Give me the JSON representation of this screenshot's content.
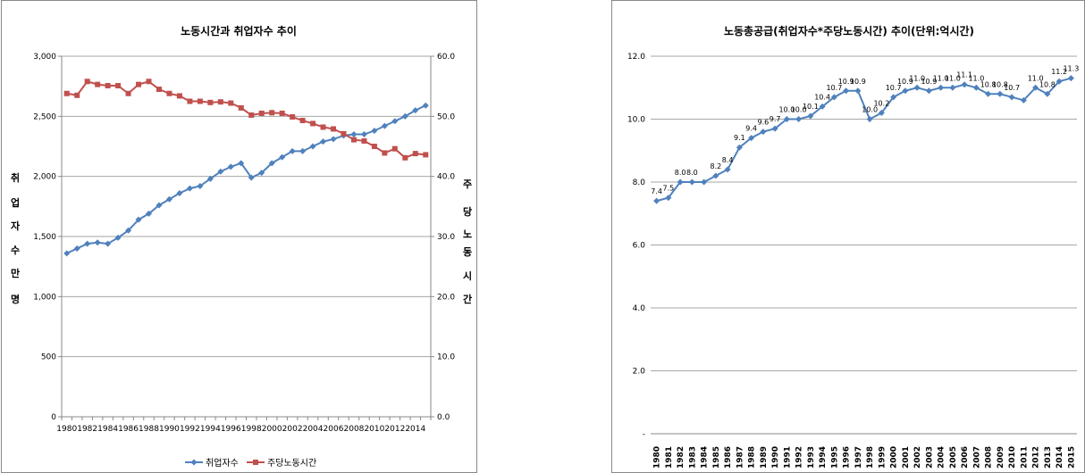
{
  "colors": {
    "blue": "#4F81BD",
    "red": "#C0504D",
    "grid": "#A6A6A6",
    "axis": "#888888"
  },
  "chart_data": [
    {
      "type": "line",
      "title": "노동시간과 취업자수 추이",
      "ylabel_left": "취업자수(만명)",
      "ylabel_right": "주당노동시간",
      "ylabel_left_chars": [
        "취",
        "업",
        "자",
        "수",
        "만",
        "명"
      ],
      "ylabel_right_chars": [
        "주",
        "당",
        "노",
        "동",
        "시",
        "간"
      ],
      "ylim_left": [
        0,
        3000
      ],
      "ylim_right": [
        0,
        60
      ],
      "yticks_left": [
        "0",
        "500",
        "1,000",
        "1,500",
        "2,000",
        "2,500",
        "3,000"
      ],
      "yticks_right": [
        "0.0",
        "10.0",
        "20.0",
        "30.0",
        "40.0",
        "50.0",
        "60.0"
      ],
      "x": [
        1980,
        1981,
        1982,
        1983,
        1984,
        1985,
        1986,
        1987,
        1988,
        1989,
        1990,
        1991,
        1992,
        1993,
        1994,
        1995,
        1996,
        1997,
        1998,
        1999,
        2000,
        2001,
        2002,
        2003,
        2004,
        2005,
        2006,
        2007,
        2008,
        2009,
        2010,
        2011,
        2012,
        2013,
        2014,
        2015
      ],
      "xticks": [
        "1980",
        "1982",
        "1984",
        "1986",
        "1988",
        "1990",
        "1992",
        "1994",
        "1996",
        "1998",
        "2000",
        "2002",
        "2004",
        "2006",
        "2008",
        "2010",
        "2012",
        "2014"
      ],
      "legend_position": "bottom",
      "series": [
        {
          "name": "취업자수",
          "axis": "left",
          "color": "#4F81BD",
          "marker": "diamond",
          "values": [
            1360,
            1400,
            1440,
            1450,
            1440,
            1490,
            1550,
            1640,
            1690,
            1760,
            1810,
            1860,
            1900,
            1920,
            1980,
            2040,
            2080,
            2110,
            1990,
            2030,
            2110,
            2160,
            2210,
            2210,
            2250,
            2290,
            2310,
            2340,
            2350,
            2350,
            2380,
            2420,
            2460,
            2500,
            2550,
            2590
          ]
        },
        {
          "name": "주당노동시간",
          "axis": "right",
          "color": "#C0504D",
          "marker": "square",
          "values": [
            53.8,
            53.5,
            55.8,
            55.3,
            55.1,
            55.1,
            53.8,
            55.3,
            55.8,
            54.5,
            53.8,
            53.4,
            52.5,
            52.5,
            52.3,
            52.4,
            52.2,
            51.4,
            50.2,
            50.5,
            50.6,
            50.5,
            49.9,
            49.3,
            48.8,
            48.2,
            47.9,
            47.1,
            46.1,
            45.9,
            45.0,
            43.9,
            44.6,
            43.1,
            43.8,
            43.6
          ]
        }
      ]
    },
    {
      "type": "line",
      "title": "노동총공급(취업자수*주당노동시간) 추이(단위:억시간)",
      "ylim": [
        0,
        12
      ],
      "yticks": [
        "-",
        "2.0",
        "4.0",
        "6.0",
        "8.0",
        "10.0",
        "12.0"
      ],
      "x": [
        "1980",
        "1981",
        "1982",
        "1983",
        "1984",
        "1985",
        "1986",
        "1987",
        "1988",
        "1989",
        "1990",
        "1991",
        "1992",
        "1993",
        "1994",
        "1995",
        "1996",
        "1997",
        "1998",
        "1999",
        "2000",
        "2001",
        "2002",
        "2003",
        "2004",
        "2005",
        "2006",
        "2007",
        "2008",
        "2009",
        "2010",
        "2011",
        "2012",
        "2013",
        "2014",
        "2015"
      ],
      "series": [
        {
          "name": "노동총공급",
          "color": "#4F81BD",
          "marker": "diamond",
          "values": [
            7.4,
            7.5,
            8.0,
            8.0,
            8.0,
            8.2,
            8.4,
            9.1,
            9.4,
            9.6,
            9.7,
            10.0,
            10.0,
            10.1,
            10.4,
            10.7,
            10.9,
            10.9,
            10.0,
            10.2,
            10.7,
            10.9,
            11.0,
            10.9,
            11.0,
            11.0,
            11.1,
            11.0,
            10.8,
            10.8,
            10.7,
            10.6,
            11.0,
            10.8,
            11.2,
            11.3
          ],
          "labels": [
            "7.4",
            "7.5",
            "8.0",
            "8.0",
            "8.0",
            "8.2",
            "8.4",
            "9.1",
            "9.4",
            "9.6",
            "9.7",
            "10.0",
            "10.0",
            "10.1",
            "10.4",
            "10.7",
            "10.9",
            "10.9",
            "10.0",
            "10.2",
            "10.7",
            "10.9",
            "11.0",
            "10.9",
            "11.0",
            "11.0",
            "11.1",
            "11.0",
            "10.8",
            "10.8",
            "10.7",
            "10.6",
            "11.0",
            "10.8",
            "11.2",
            "11.3"
          ],
          "label_shown": [
            true,
            true,
            true,
            true,
            false,
            true,
            true,
            true,
            true,
            true,
            true,
            true,
            true,
            true,
            true,
            true,
            true,
            true,
            true,
            true,
            true,
            true,
            true,
            true,
            true,
            true,
            true,
            true,
            true,
            true,
            true,
            false,
            true,
            true,
            true,
            true
          ]
        }
      ]
    }
  ]
}
